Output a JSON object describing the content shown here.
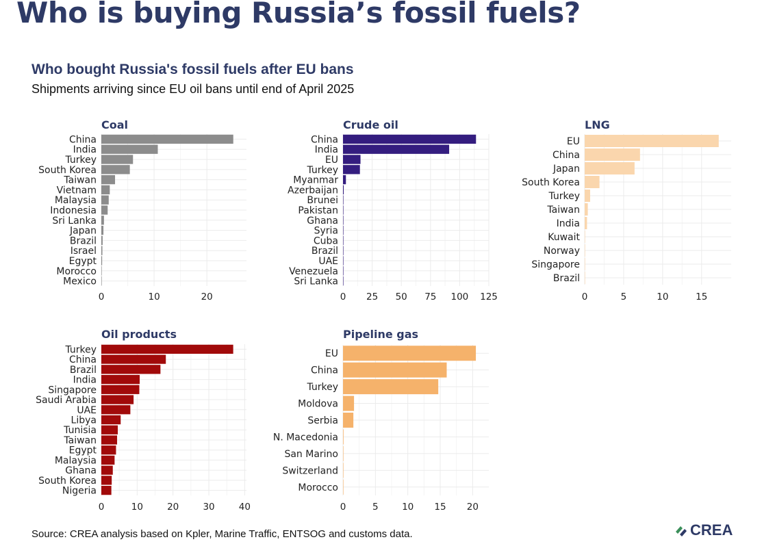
{
  "page": {
    "title": "Who is buying Russia’s fossil fuels?",
    "chart_title": "Who bought Russia's fossil fuels after EU bans",
    "chart_subtitle": "Shipments arriving since EU oil bans until end of April 2025",
    "source": "Source: CREA analysis based on Kpler, Marine Traffic, ENTSOG and customs data.",
    "logo_text": "CREA",
    "logo_colors": [
      "#3b8f5a",
      "#2e3a66"
    ]
  },
  "chart_data": [
    {
      "type": "bar",
      "orientation": "horizontal",
      "title": "Coal",
      "color": "#8c8c8c",
      "categories": [
        "China",
        "India",
        "Turkey",
        "South Korea",
        "Taiwan",
        "Vietnam",
        "Malaysia",
        "Indonesia",
        "Sri Lanka",
        "Japan",
        "Brazil",
        "Israel",
        "Egypt",
        "Morocco",
        "Mexico"
      ],
      "values": [
        25,
        10.7,
        6,
        5.4,
        2.6,
        1.6,
        1.4,
        1.2,
        0.5,
        0.4,
        0.25,
        0.2,
        0.15,
        0.05,
        0.03
      ],
      "xlim": [
        0,
        27.5
      ],
      "xticks": [
        0,
        10,
        20
      ]
    },
    {
      "type": "bar",
      "orientation": "horizontal",
      "title": "Crude oil",
      "color": "#341d7f",
      "categories": [
        "China",
        "India",
        "EU",
        "Turkey",
        "Myanmar",
        "Azerbaijan",
        "Brunei",
        "Pakistan",
        "Ghana",
        "Syria",
        "Cuba",
        "Brazil",
        "UAE",
        "Venezuela",
        "Sri Lanka"
      ],
      "values": [
        114,
        91,
        15,
        14.5,
        2.5,
        0.6,
        0.3,
        0.25,
        0.2,
        0.15,
        0.12,
        0.1,
        0.08,
        0.06,
        0.05
      ],
      "xlim": [
        0,
        125
      ],
      "xticks": [
        0,
        25,
        50,
        75,
        100,
        125
      ]
    },
    {
      "type": "bar",
      "orientation": "horizontal",
      "title": "LNG",
      "color": "#fad6ad",
      "categories": [
        "EU",
        "China",
        "Japan",
        "South Korea",
        "Turkey",
        "Taiwan",
        "India",
        "Kuwait",
        "Norway",
        "Singapore",
        "Brazil"
      ],
      "values": [
        17.2,
        7.1,
        6.4,
        1.9,
        0.7,
        0.4,
        0.3,
        0.04,
        0.03,
        0.03,
        0.02
      ],
      "xlim": [
        0,
        18.8
      ],
      "xticks": [
        0,
        5,
        10,
        15
      ]
    },
    {
      "type": "bar",
      "orientation": "horizontal",
      "title": "Oil products",
      "color": "#a10a0a",
      "categories": [
        "Turkey",
        "China",
        "Brazil",
        "India",
        "Singapore",
        "Saudi Arabia",
        "UAE",
        "Libya",
        "Tunisia",
        "Taiwan",
        "Egypt",
        "Malaysia",
        "Ghana",
        "South Korea",
        "Nigeria"
      ],
      "values": [
        36.8,
        18,
        16.5,
        10.7,
        10.6,
        9,
        8.1,
        5.4,
        4.6,
        4.4,
        4.1,
        3.7,
        3.2,
        2.9,
        2.8
      ],
      "xlim": [
        0,
        40.5
      ],
      "xticks": [
        0,
        10,
        20,
        30,
        40
      ]
    },
    {
      "type": "bar",
      "orientation": "horizontal",
      "title": "Pipeline gas",
      "color": "#f5b26b",
      "categories": [
        "EU",
        "China",
        "Turkey",
        "Moldova",
        "Serbia",
        "N. Macedonia",
        "San Marino",
        "Switzerland",
        "Morocco"
      ],
      "values": [
        20.5,
        16,
        14.7,
        1.7,
        1.6,
        0.08,
        0.04,
        0.03,
        0.02
      ],
      "xlim": [
        0,
        22.5
      ],
      "xticks": [
        0,
        5,
        10,
        15,
        20
      ]
    }
  ]
}
